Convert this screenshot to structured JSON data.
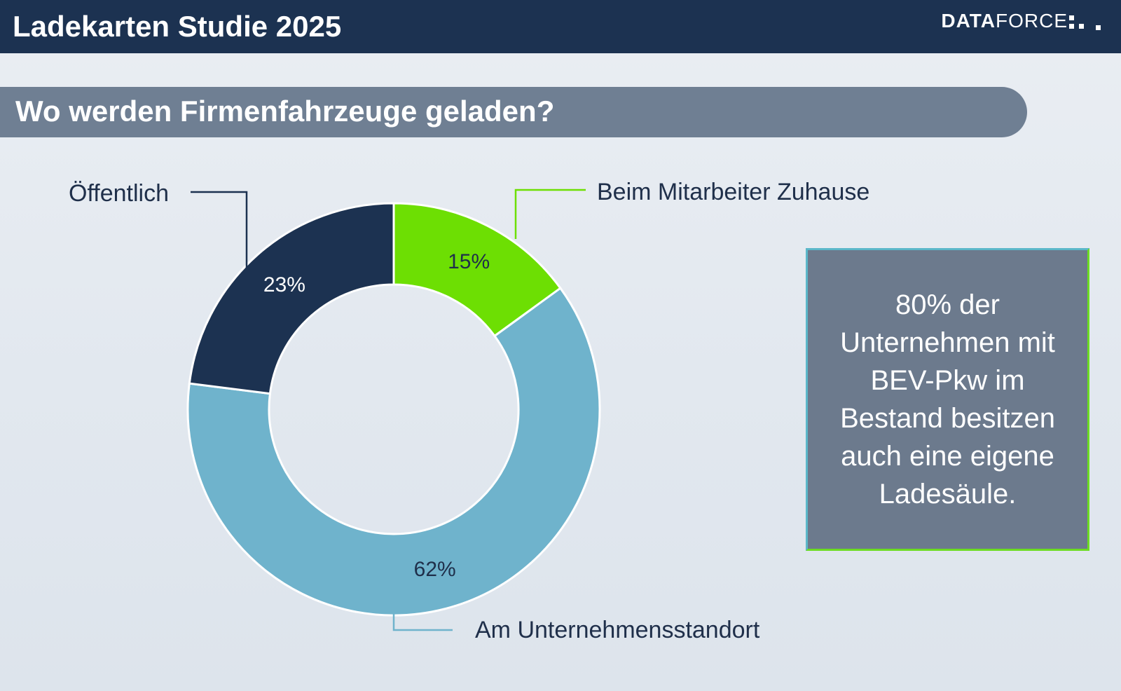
{
  "header": {
    "title": "Ladekarten Studie 2025",
    "logo_bold": "DATA",
    "logo_light": "FORCE"
  },
  "question": "Wo werden Firmenfahrzeuge geladen?",
  "callout": {
    "lines": [
      "80% der",
      "Unternehmen mit",
      "BEV-Pkw im",
      "Bestand besitzen",
      "auch eine eigene",
      "Ladesäule."
    ]
  },
  "colors": {
    "header_bg": "#1c3251",
    "slice_zuhause": "#6ddf03",
    "slice_standort": "#6fb3cc",
    "slice_oeffentlich": "#1c3251"
  },
  "chart_data": {
    "type": "pie",
    "variant": "donut",
    "title": "",
    "categories": [
      "Beim Mitarbeiter Zuhause",
      "Am Unternehmensstandort",
      "Öffentlich"
    ],
    "values": [
      15,
      62,
      23
    ],
    "value_labels": [
      "15%",
      "62%",
      "23%"
    ],
    "unit": "%",
    "start": "12 o'clock",
    "direction": "clockwise",
    "legend": "none"
  }
}
